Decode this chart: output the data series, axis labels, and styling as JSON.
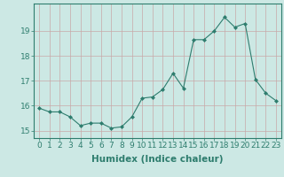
{
  "x": [
    0,
    1,
    2,
    3,
    4,
    5,
    6,
    7,
    8,
    9,
    10,
    11,
    12,
    13,
    14,
    15,
    16,
    17,
    18,
    19,
    20,
    21,
    22,
    23
  ],
  "y": [
    15.9,
    15.75,
    15.75,
    15.55,
    15.2,
    15.3,
    15.3,
    15.1,
    15.15,
    15.55,
    16.3,
    16.35,
    16.65,
    17.3,
    16.7,
    18.65,
    18.65,
    19.0,
    19.55,
    19.15,
    19.3,
    17.05,
    16.5,
    16.2
  ],
  "line_color": "#2e7d6e",
  "marker": "D",
  "marker_size": 2.0,
  "bg_color": "#cce8e4",
  "grid_color": "#c8a8a8",
  "axis_color": "#2e7d6e",
  "xlabel": "Humidex (Indice chaleur)",
  "xlabel_fontsize": 7.5,
  "tick_fontsize": 6.5,
  "ylim": [
    14.7,
    20.1
  ],
  "xlim": [
    -0.5,
    23.5
  ],
  "yticks": [
    15,
    16,
    17,
    18,
    19
  ],
  "xticks": [
    0,
    1,
    2,
    3,
    4,
    5,
    6,
    7,
    8,
    9,
    10,
    11,
    12,
    13,
    14,
    15,
    16,
    17,
    18,
    19,
    20,
    21,
    22,
    23
  ]
}
